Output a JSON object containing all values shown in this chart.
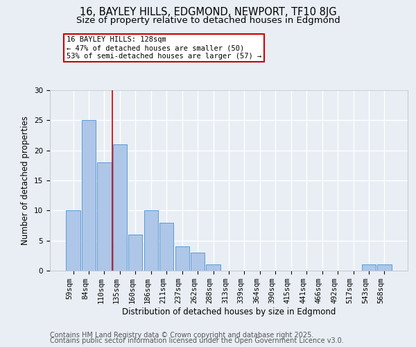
{
  "title_line1": "16, BAYLEY HILLS, EDGMOND, NEWPORT, TF10 8JG",
  "title_line2": "Size of property relative to detached houses in Edgmond",
  "categories": [
    "59sqm",
    "84sqm",
    "110sqm",
    "135sqm",
    "160sqm",
    "186sqm",
    "211sqm",
    "237sqm",
    "262sqm",
    "288sqm",
    "313sqm",
    "339sqm",
    "364sqm",
    "390sqm",
    "415sqm",
    "441sqm",
    "466sqm",
    "492sqm",
    "517sqm",
    "543sqm",
    "568sqm"
  ],
  "values": [
    10,
    25,
    18,
    21,
    6,
    10,
    8,
    4,
    3,
    1,
    0,
    0,
    0,
    0,
    0,
    0,
    0,
    0,
    0,
    1,
    1
  ],
  "bar_color": "#aec6e8",
  "bar_edgecolor": "#5b9bd5",
  "red_line_index": 3,
  "annotation_title": "16 BAYLEY HILLS: 128sqm",
  "annotation_line2": "← 47% of detached houses are smaller (50)",
  "annotation_line3": "53% of semi-detached houses are larger (57) →",
  "annotation_box_facecolor": "white",
  "annotation_box_edgecolor": "#cc0000",
  "xlabel": "Distribution of detached houses by size in Edgmond",
  "ylabel": "Number of detached properties",
  "ylim": [
    0,
    30
  ],
  "yticks": [
    0,
    5,
    10,
    15,
    20,
    25,
    30
  ],
  "footnote_line1": "Contains HM Land Registry data © Crown copyright and database right 2025.",
  "footnote_line2": "Contains public sector information licensed under the Open Government Licence v3.0.",
  "background_color": "#e8eef4",
  "grid_color": "white",
  "title_fontsize": 10.5,
  "subtitle_fontsize": 9.5,
  "axis_label_fontsize": 8.5,
  "tick_fontsize": 7.5,
  "annotation_fontsize": 7.5,
  "footnote_fontsize": 7.0
}
